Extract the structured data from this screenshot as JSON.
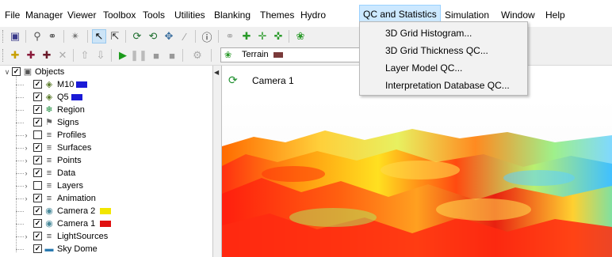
{
  "menubar": {
    "items": [
      "File",
      "Manager",
      "Viewer",
      "Toolbox",
      "Tools",
      "Utilities",
      "Blanking",
      "Themes",
      "Hydro",
      "QC and Statistics",
      "Simulation",
      "Window",
      "Help"
    ],
    "active_index": 9
  },
  "qc_menu": {
    "items": [
      "3D Grid Histogram...",
      "3D Grid Thickness QC...",
      "Layer Model QC...",
      "Interpretation Database QC..."
    ]
  },
  "toolbar2": {
    "terrain_label": "Terrain",
    "terrain_color": "#7a3a3a"
  },
  "tree": {
    "root_label": "Objects",
    "items": [
      {
        "label": "M10",
        "checked": true,
        "swatch": "#1a1ad6",
        "icon": "horizon-icon",
        "expander": false
      },
      {
        "label": "Q5",
        "checked": true,
        "swatch": "#1a1ad6",
        "icon": "horizon-icon",
        "expander": false
      },
      {
        "label": "Region",
        "checked": true,
        "swatch": null,
        "icon": "region-icon",
        "expander": false
      },
      {
        "label": "Signs",
        "checked": true,
        "swatch": null,
        "icon": "signs-icon",
        "expander": false
      },
      {
        "label": "Profiles",
        "checked": false,
        "swatch": null,
        "icon": "folder-icon",
        "expander": true
      },
      {
        "label": "Surfaces",
        "checked": true,
        "swatch": null,
        "icon": "folder-icon",
        "expander": true
      },
      {
        "label": "Points",
        "checked": true,
        "swatch": null,
        "icon": "folder-icon",
        "expander": true
      },
      {
        "label": "Data",
        "checked": true,
        "swatch": null,
        "icon": "folder-icon",
        "expander": true
      },
      {
        "label": "Layers",
        "checked": false,
        "swatch": null,
        "icon": "folder-icon",
        "expander": true
      },
      {
        "label": "Animation",
        "checked": true,
        "swatch": null,
        "icon": "folder-icon",
        "expander": true
      },
      {
        "label": "Camera 2",
        "checked": true,
        "swatch": "#f2e600",
        "icon": "camera-icon",
        "expander": false
      },
      {
        "label": "Camera 1",
        "checked": true,
        "swatch": "#e01010",
        "icon": "camera-icon",
        "expander": false
      },
      {
        "label": "LightSources",
        "checked": true,
        "swatch": null,
        "icon": "folder-icon",
        "expander": true
      },
      {
        "label": "Sky Dome",
        "checked": true,
        "swatch": null,
        "icon": "skydome-icon",
        "expander": false
      }
    ]
  },
  "camera": {
    "title": "Camera 1"
  }
}
